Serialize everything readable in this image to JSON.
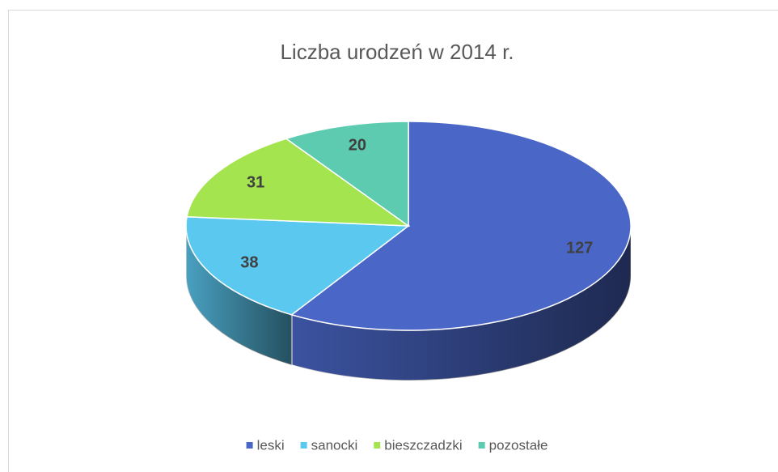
{
  "chart_data": {
    "type": "pie",
    "title": "Liczba urodzeń w 2014 r.",
    "categories": [
      "leski",
      "sanocki",
      "bieszczadzki",
      "pozostałe"
    ],
    "values": [
      127,
      38,
      31,
      20
    ],
    "colors": [
      "#4a67c8",
      "#5bc8f0",
      "#a4e44f",
      "#5ccbb0"
    ],
    "legend": "bottom"
  }
}
